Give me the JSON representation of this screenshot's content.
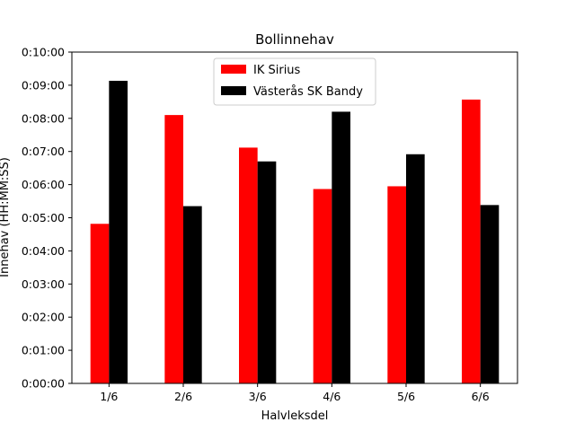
{
  "chart_data": {
    "type": "bar",
    "title": "Bollinnehav",
    "xlabel": "Halvleksdel",
    "ylabel": "Innehav (HH:MM:SS)",
    "categories": [
      "1/6",
      "2/6",
      "3/6",
      "4/6",
      "5/6",
      "6/6"
    ],
    "ylim": [
      0,
      600
    ],
    "yticks": [
      0,
      60,
      120,
      180,
      240,
      300,
      360,
      420,
      480,
      540,
      600
    ],
    "ytick_labels": [
      "0:00:00",
      "0:01:00",
      "0:02:00",
      "0:03:00",
      "0:04:00",
      "0:05:00",
      "0:06:00",
      "0:07:00",
      "0:08:00",
      "0:09:00",
      "0:10:00"
    ],
    "legend_position": "upper-center",
    "grid": false,
    "series": [
      {
        "name": "IK Sirius",
        "color": "#ff0000",
        "values": [
          289,
          486,
          427,
          352,
          357,
          514
        ]
      },
      {
        "name": "Västerås SK Bandy",
        "color": "#000000",
        "values": [
          548,
          321,
          402,
          492,
          415,
          323
        ]
      }
    ]
  }
}
